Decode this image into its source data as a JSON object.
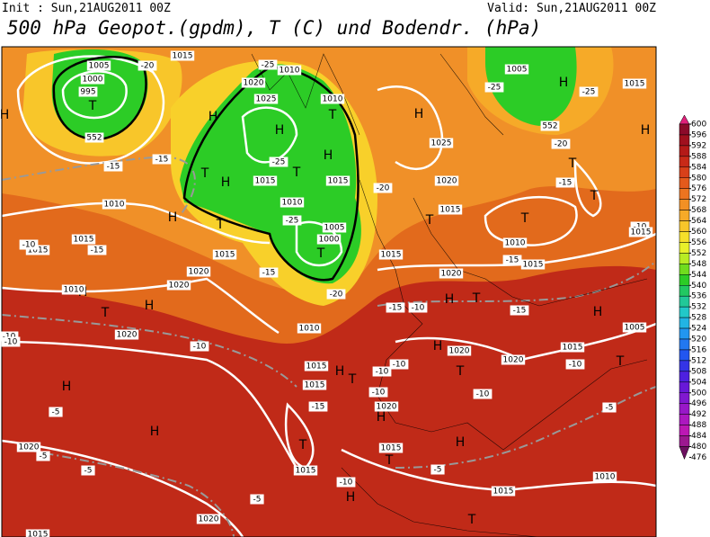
{
  "header": {
    "init": "Init : Sun,21AUG2011 00Z",
    "valid": "Valid: Sun,21AUG2011 00Z",
    "title": "500 hPa Geopot.(gpdm), T (C) und Bodendr. (hPa)"
  },
  "map": {
    "labels": [
      "H",
      "T",
      "1005",
      "1000",
      "995",
      "-20",
      "1015",
      "1020",
      "1025",
      "H",
      "H",
      "1010",
      "-25",
      "1010",
      "T",
      "H",
      "-25",
      "T",
      "1015",
      "H",
      "T",
      "-15",
      "-15",
      "1010",
      "H",
      "T",
      "1015",
      "1015",
      "-15",
      "1015",
      "-10",
      "1020",
      "1020",
      "-15",
      "1010",
      "-25",
      "1005",
      "1000",
      "T",
      "-20",
      "1010",
      "1015",
      "-20",
      "1015",
      "1025",
      "H",
      "T",
      "1015",
      "1020",
      "1020",
      "1005",
      "-25",
      "H",
      "-25",
      "1015",
      "H",
      "-20",
      "T",
      "-15",
      "T",
      "T",
      "1010",
      "-15",
      "1015",
      "-10",
      "1015",
      "-15",
      "-10",
      "H",
      "T",
      "-15",
      "H",
      "1005",
      "-10",
      "1020",
      "-10",
      "T",
      "H",
      "H",
      "1010",
      "1015",
      "H",
      "T",
      "-10",
      "-10",
      "H",
      "1020",
      "1020",
      "1015",
      "T",
      "-10",
      "T",
      "-10",
      "1015",
      "-10",
      "1020",
      "H",
      "-15",
      "-5",
      "H",
      "H",
      "-5",
      "1020",
      "-5",
      "-5",
      "T",
      "1015",
      "H",
      "1015",
      "T",
      "-5",
      "-10",
      "H",
      "1010",
      "1015",
      "-5",
      "1020",
      "T",
      "1015",
      "552",
      "552",
      "-10"
    ],
    "colorbar": {
      "levels": [
        600,
        596,
        592,
        588,
        584,
        580,
        576,
        572,
        568,
        564,
        560,
        556,
        552,
        548,
        544,
        540,
        536,
        532,
        528,
        524,
        520,
        516,
        512,
        508,
        504,
        500,
        496,
        492,
        488,
        484,
        480,
        476
      ],
      "colors": [
        "#e0207a",
        "#8c0a2a",
        "#a0101e",
        "#b41a18",
        "#c82a18",
        "#d8401a",
        "#e45a1c",
        "#ec7420",
        "#f29024",
        "#f6aa28",
        "#f8c62a",
        "#f6e02a",
        "#e8f02a",
        "#b8ec24",
        "#70dc1e",
        "#2ccc26",
        "#22c862",
        "#22c898",
        "#22c8c8",
        "#22b4e4",
        "#2296f0",
        "#2278f0",
        "#2256f0",
        "#3434e6",
        "#4e20e0",
        "#6818d8",
        "#8018d0",
        "#9818c8",
        "#ac18c0",
        "#bc18b4",
        "#9c1890",
        "#6c1060"
      ]
    }
  }
}
